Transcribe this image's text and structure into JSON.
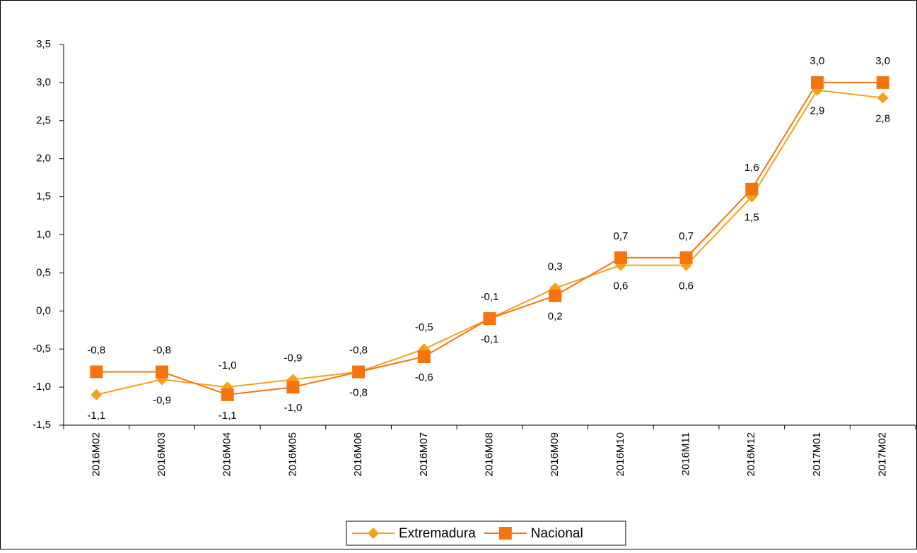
{
  "chart_data": {
    "type": "line",
    "categories": [
      "2016M02",
      "2016M03",
      "2016M04",
      "2016M05",
      "2016M06",
      "2016M07",
      "2016M08",
      "2016M09",
      "2016M10",
      "2016M11",
      "2016M12",
      "2017M01",
      "2017M02"
    ],
    "series": [
      {
        "name": "Extremadura",
        "color": "#f7a11a",
        "marker": "diamond",
        "values": [
          -1.1,
          -0.9,
          -1.0,
          -0.9,
          -0.8,
          -0.5,
          -0.1,
          0.3,
          0.6,
          0.6,
          1.5,
          2.9,
          2.8
        ],
        "value_labels": [
          "-1,1",
          "-0,9",
          "-1,0",
          "-0,9",
          "-0,8",
          "-0,5",
          "-0,1",
          "0,3",
          "0,6",
          "0,6",
          "1,5",
          "2,9",
          "2,8"
        ]
      },
      {
        "name": "Nacional",
        "color": "#f7730e",
        "marker": "square",
        "values": [
          -0.8,
          -0.8,
          -1.1,
          -1.0,
          -0.8,
          -0.6,
          -0.1,
          0.2,
          0.7,
          0.7,
          1.6,
          3.0,
          3.0
        ],
        "value_labels": [
          "-0,8",
          "-0,8",
          "-1,1",
          "-1,0",
          "-0,8",
          "-0,6",
          "-0,1",
          "0,2",
          "0,7",
          "0,7",
          "1,6",
          "3,0",
          "3,0"
        ]
      }
    ],
    "ylim": [
      -1.5,
      3.5
    ],
    "yticks": [
      {
        "value": -1.5,
        "label": "-1,5"
      },
      {
        "value": -1,
        "label": "-1,0"
      },
      {
        "value": -0.5,
        "label": "-0,5"
      },
      {
        "value": 0,
        "label": "0,0"
      },
      {
        "value": 0.5,
        "label": "0,5"
      },
      {
        "value": 1,
        "label": "1,0"
      },
      {
        "value": 1.5,
        "label": "1,5"
      },
      {
        "value": 2,
        "label": "2,0"
      },
      {
        "value": 2.5,
        "label": "2,5"
      },
      {
        "value": 3,
        "label": "3,0"
      },
      {
        "value": 3.5,
        "label": "3,5"
      }
    ],
    "grid": false,
    "legend": "bottom"
  }
}
